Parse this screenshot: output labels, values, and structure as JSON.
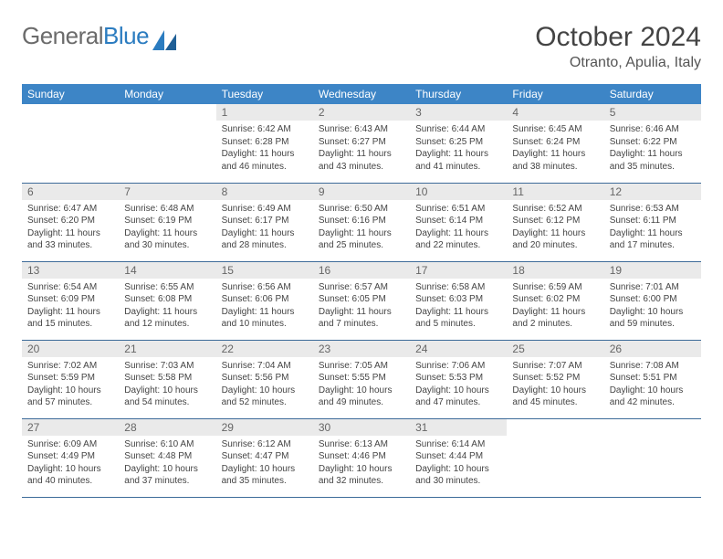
{
  "brand": {
    "part1": "General",
    "part2": "Blue"
  },
  "title": "October 2024",
  "location": "Otranto, Apulia, Italy",
  "colors": {
    "header_bg": "#3d85c6",
    "header_fg": "#ffffff",
    "daynum_bg": "#eaeaea",
    "cell_border": "#3d6b99",
    "logo_grey": "#6b6b6b",
    "logo_blue": "#2b7cc0"
  },
  "weekdays": [
    "Sunday",
    "Monday",
    "Tuesday",
    "Wednesday",
    "Thursday",
    "Friday",
    "Saturday"
  ],
  "weeks": [
    [
      null,
      null,
      {
        "n": "1",
        "sr": "Sunrise: 6:42 AM",
        "ss": "Sunset: 6:28 PM",
        "dl": "Daylight: 11 hours and 46 minutes."
      },
      {
        "n": "2",
        "sr": "Sunrise: 6:43 AM",
        "ss": "Sunset: 6:27 PM",
        "dl": "Daylight: 11 hours and 43 minutes."
      },
      {
        "n": "3",
        "sr": "Sunrise: 6:44 AM",
        "ss": "Sunset: 6:25 PM",
        "dl": "Daylight: 11 hours and 41 minutes."
      },
      {
        "n": "4",
        "sr": "Sunrise: 6:45 AM",
        "ss": "Sunset: 6:24 PM",
        "dl": "Daylight: 11 hours and 38 minutes."
      },
      {
        "n": "5",
        "sr": "Sunrise: 6:46 AM",
        "ss": "Sunset: 6:22 PM",
        "dl": "Daylight: 11 hours and 35 minutes."
      }
    ],
    [
      {
        "n": "6",
        "sr": "Sunrise: 6:47 AM",
        "ss": "Sunset: 6:20 PM",
        "dl": "Daylight: 11 hours and 33 minutes."
      },
      {
        "n": "7",
        "sr": "Sunrise: 6:48 AM",
        "ss": "Sunset: 6:19 PM",
        "dl": "Daylight: 11 hours and 30 minutes."
      },
      {
        "n": "8",
        "sr": "Sunrise: 6:49 AM",
        "ss": "Sunset: 6:17 PM",
        "dl": "Daylight: 11 hours and 28 minutes."
      },
      {
        "n": "9",
        "sr": "Sunrise: 6:50 AM",
        "ss": "Sunset: 6:16 PM",
        "dl": "Daylight: 11 hours and 25 minutes."
      },
      {
        "n": "10",
        "sr": "Sunrise: 6:51 AM",
        "ss": "Sunset: 6:14 PM",
        "dl": "Daylight: 11 hours and 22 minutes."
      },
      {
        "n": "11",
        "sr": "Sunrise: 6:52 AM",
        "ss": "Sunset: 6:12 PM",
        "dl": "Daylight: 11 hours and 20 minutes."
      },
      {
        "n": "12",
        "sr": "Sunrise: 6:53 AM",
        "ss": "Sunset: 6:11 PM",
        "dl": "Daylight: 11 hours and 17 minutes."
      }
    ],
    [
      {
        "n": "13",
        "sr": "Sunrise: 6:54 AM",
        "ss": "Sunset: 6:09 PM",
        "dl": "Daylight: 11 hours and 15 minutes."
      },
      {
        "n": "14",
        "sr": "Sunrise: 6:55 AM",
        "ss": "Sunset: 6:08 PM",
        "dl": "Daylight: 11 hours and 12 minutes."
      },
      {
        "n": "15",
        "sr": "Sunrise: 6:56 AM",
        "ss": "Sunset: 6:06 PM",
        "dl": "Daylight: 11 hours and 10 minutes."
      },
      {
        "n": "16",
        "sr": "Sunrise: 6:57 AM",
        "ss": "Sunset: 6:05 PM",
        "dl": "Daylight: 11 hours and 7 minutes."
      },
      {
        "n": "17",
        "sr": "Sunrise: 6:58 AM",
        "ss": "Sunset: 6:03 PM",
        "dl": "Daylight: 11 hours and 5 minutes."
      },
      {
        "n": "18",
        "sr": "Sunrise: 6:59 AM",
        "ss": "Sunset: 6:02 PM",
        "dl": "Daylight: 11 hours and 2 minutes."
      },
      {
        "n": "19",
        "sr": "Sunrise: 7:01 AM",
        "ss": "Sunset: 6:00 PM",
        "dl": "Daylight: 10 hours and 59 minutes."
      }
    ],
    [
      {
        "n": "20",
        "sr": "Sunrise: 7:02 AM",
        "ss": "Sunset: 5:59 PM",
        "dl": "Daylight: 10 hours and 57 minutes."
      },
      {
        "n": "21",
        "sr": "Sunrise: 7:03 AM",
        "ss": "Sunset: 5:58 PM",
        "dl": "Daylight: 10 hours and 54 minutes."
      },
      {
        "n": "22",
        "sr": "Sunrise: 7:04 AM",
        "ss": "Sunset: 5:56 PM",
        "dl": "Daylight: 10 hours and 52 minutes."
      },
      {
        "n": "23",
        "sr": "Sunrise: 7:05 AM",
        "ss": "Sunset: 5:55 PM",
        "dl": "Daylight: 10 hours and 49 minutes."
      },
      {
        "n": "24",
        "sr": "Sunrise: 7:06 AM",
        "ss": "Sunset: 5:53 PM",
        "dl": "Daylight: 10 hours and 47 minutes."
      },
      {
        "n": "25",
        "sr": "Sunrise: 7:07 AM",
        "ss": "Sunset: 5:52 PM",
        "dl": "Daylight: 10 hours and 45 minutes."
      },
      {
        "n": "26",
        "sr": "Sunrise: 7:08 AM",
        "ss": "Sunset: 5:51 PM",
        "dl": "Daylight: 10 hours and 42 minutes."
      }
    ],
    [
      {
        "n": "27",
        "sr": "Sunrise: 6:09 AM",
        "ss": "Sunset: 4:49 PM",
        "dl": "Daylight: 10 hours and 40 minutes."
      },
      {
        "n": "28",
        "sr": "Sunrise: 6:10 AM",
        "ss": "Sunset: 4:48 PM",
        "dl": "Daylight: 10 hours and 37 minutes."
      },
      {
        "n": "29",
        "sr": "Sunrise: 6:12 AM",
        "ss": "Sunset: 4:47 PM",
        "dl": "Daylight: 10 hours and 35 minutes."
      },
      {
        "n": "30",
        "sr": "Sunrise: 6:13 AM",
        "ss": "Sunset: 4:46 PM",
        "dl": "Daylight: 10 hours and 32 minutes."
      },
      {
        "n": "31",
        "sr": "Sunrise: 6:14 AM",
        "ss": "Sunset: 4:44 PM",
        "dl": "Daylight: 10 hours and 30 minutes."
      },
      null,
      null
    ]
  ]
}
